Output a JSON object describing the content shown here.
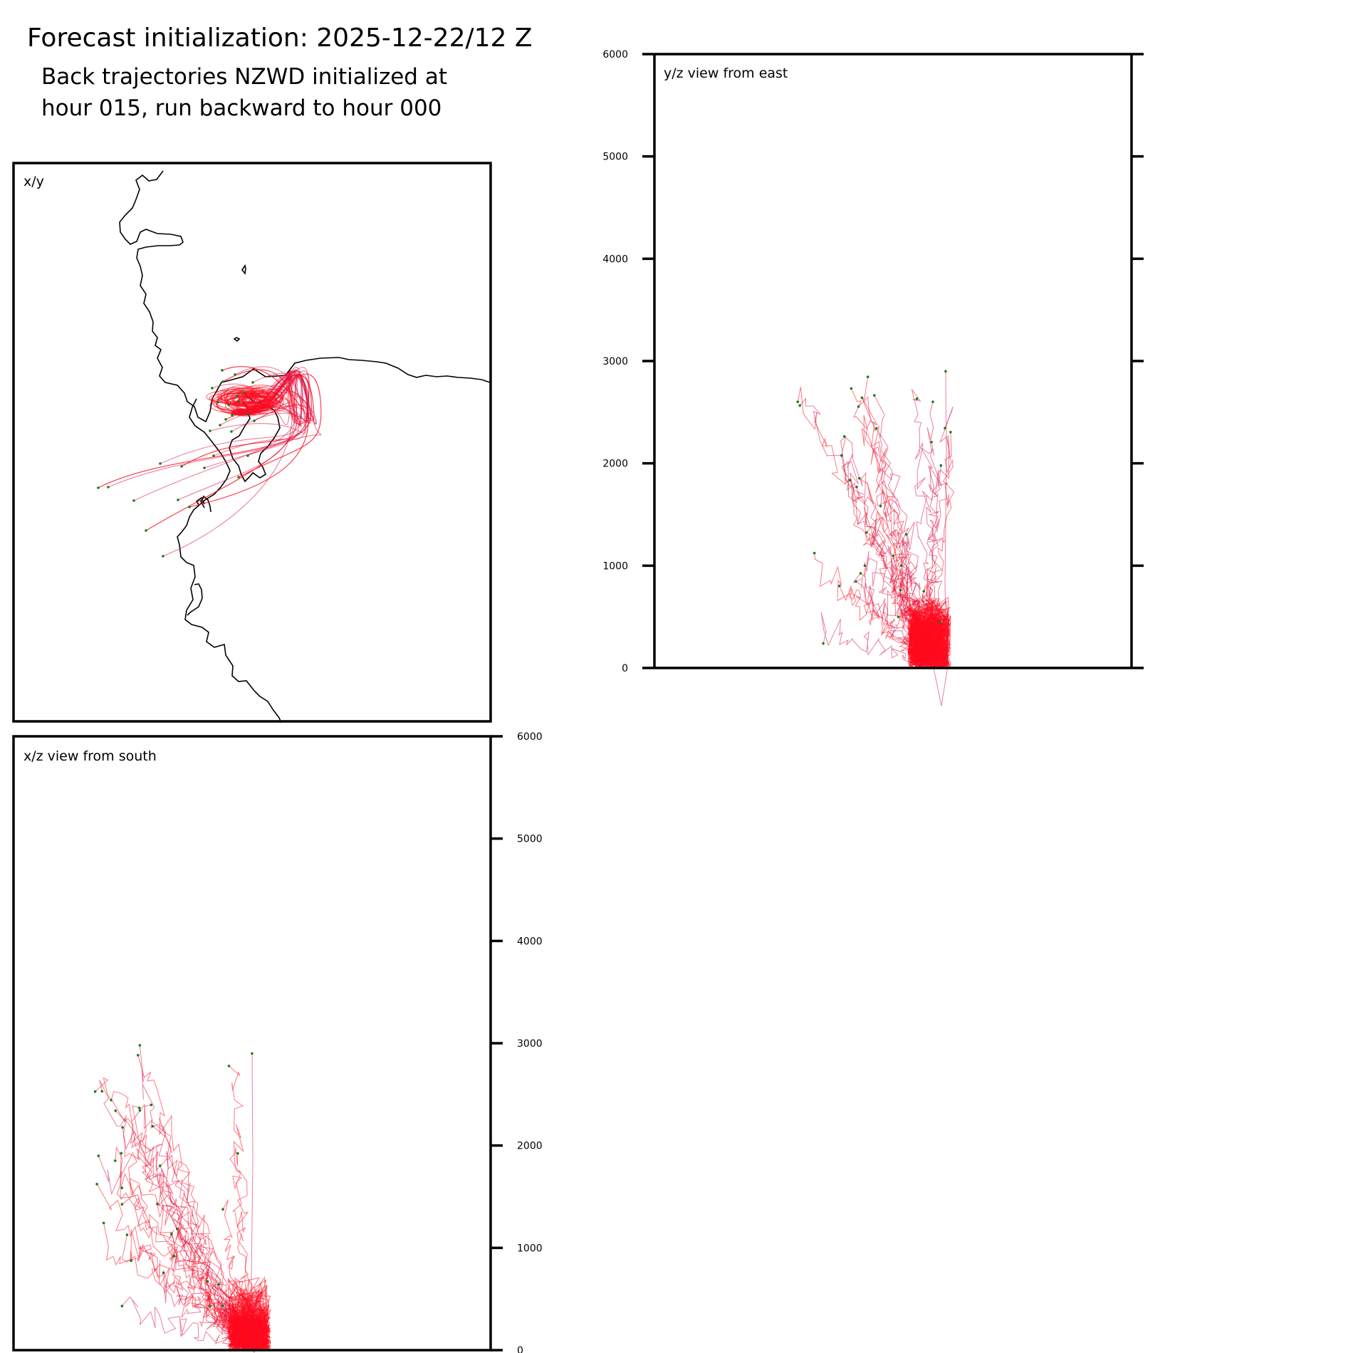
{
  "header": {
    "title": "Forecast initialization: 2025-12-22/12 Z",
    "subtitle_line1": "Back trajectories NZWD initialized at",
    "subtitle_line2": "hour 015, run backward to hour 000"
  },
  "colors": {
    "trajectory": "#d9184b",
    "trajectory_core": "#ff0a1e",
    "endpoint": "#1a7a1a",
    "coastline": "#000000",
    "frame": "#000000"
  },
  "chart_data": [
    {
      "id": "xy",
      "type": "line",
      "label": "x/y",
      "grid": false,
      "description_of_marks": "trajectory paths in map plan view with coastline"
    },
    {
      "id": "yz",
      "type": "line",
      "label": "y/z view from east",
      "ylim": [
        0,
        6000
      ],
      "yticks": [
        0,
        1000,
        2000,
        3000,
        4000,
        5000,
        6000
      ],
      "tick_labels_side": "left",
      "grid": false
    },
    {
      "id": "xz",
      "type": "line",
      "label": "x/z view from south",
      "ylim": [
        0,
        6000
      ],
      "yticks": [
        0,
        1000,
        2000,
        3000,
        4000,
        5000,
        6000
      ],
      "tick_labels_side": "right",
      "grid": false
    }
  ]
}
